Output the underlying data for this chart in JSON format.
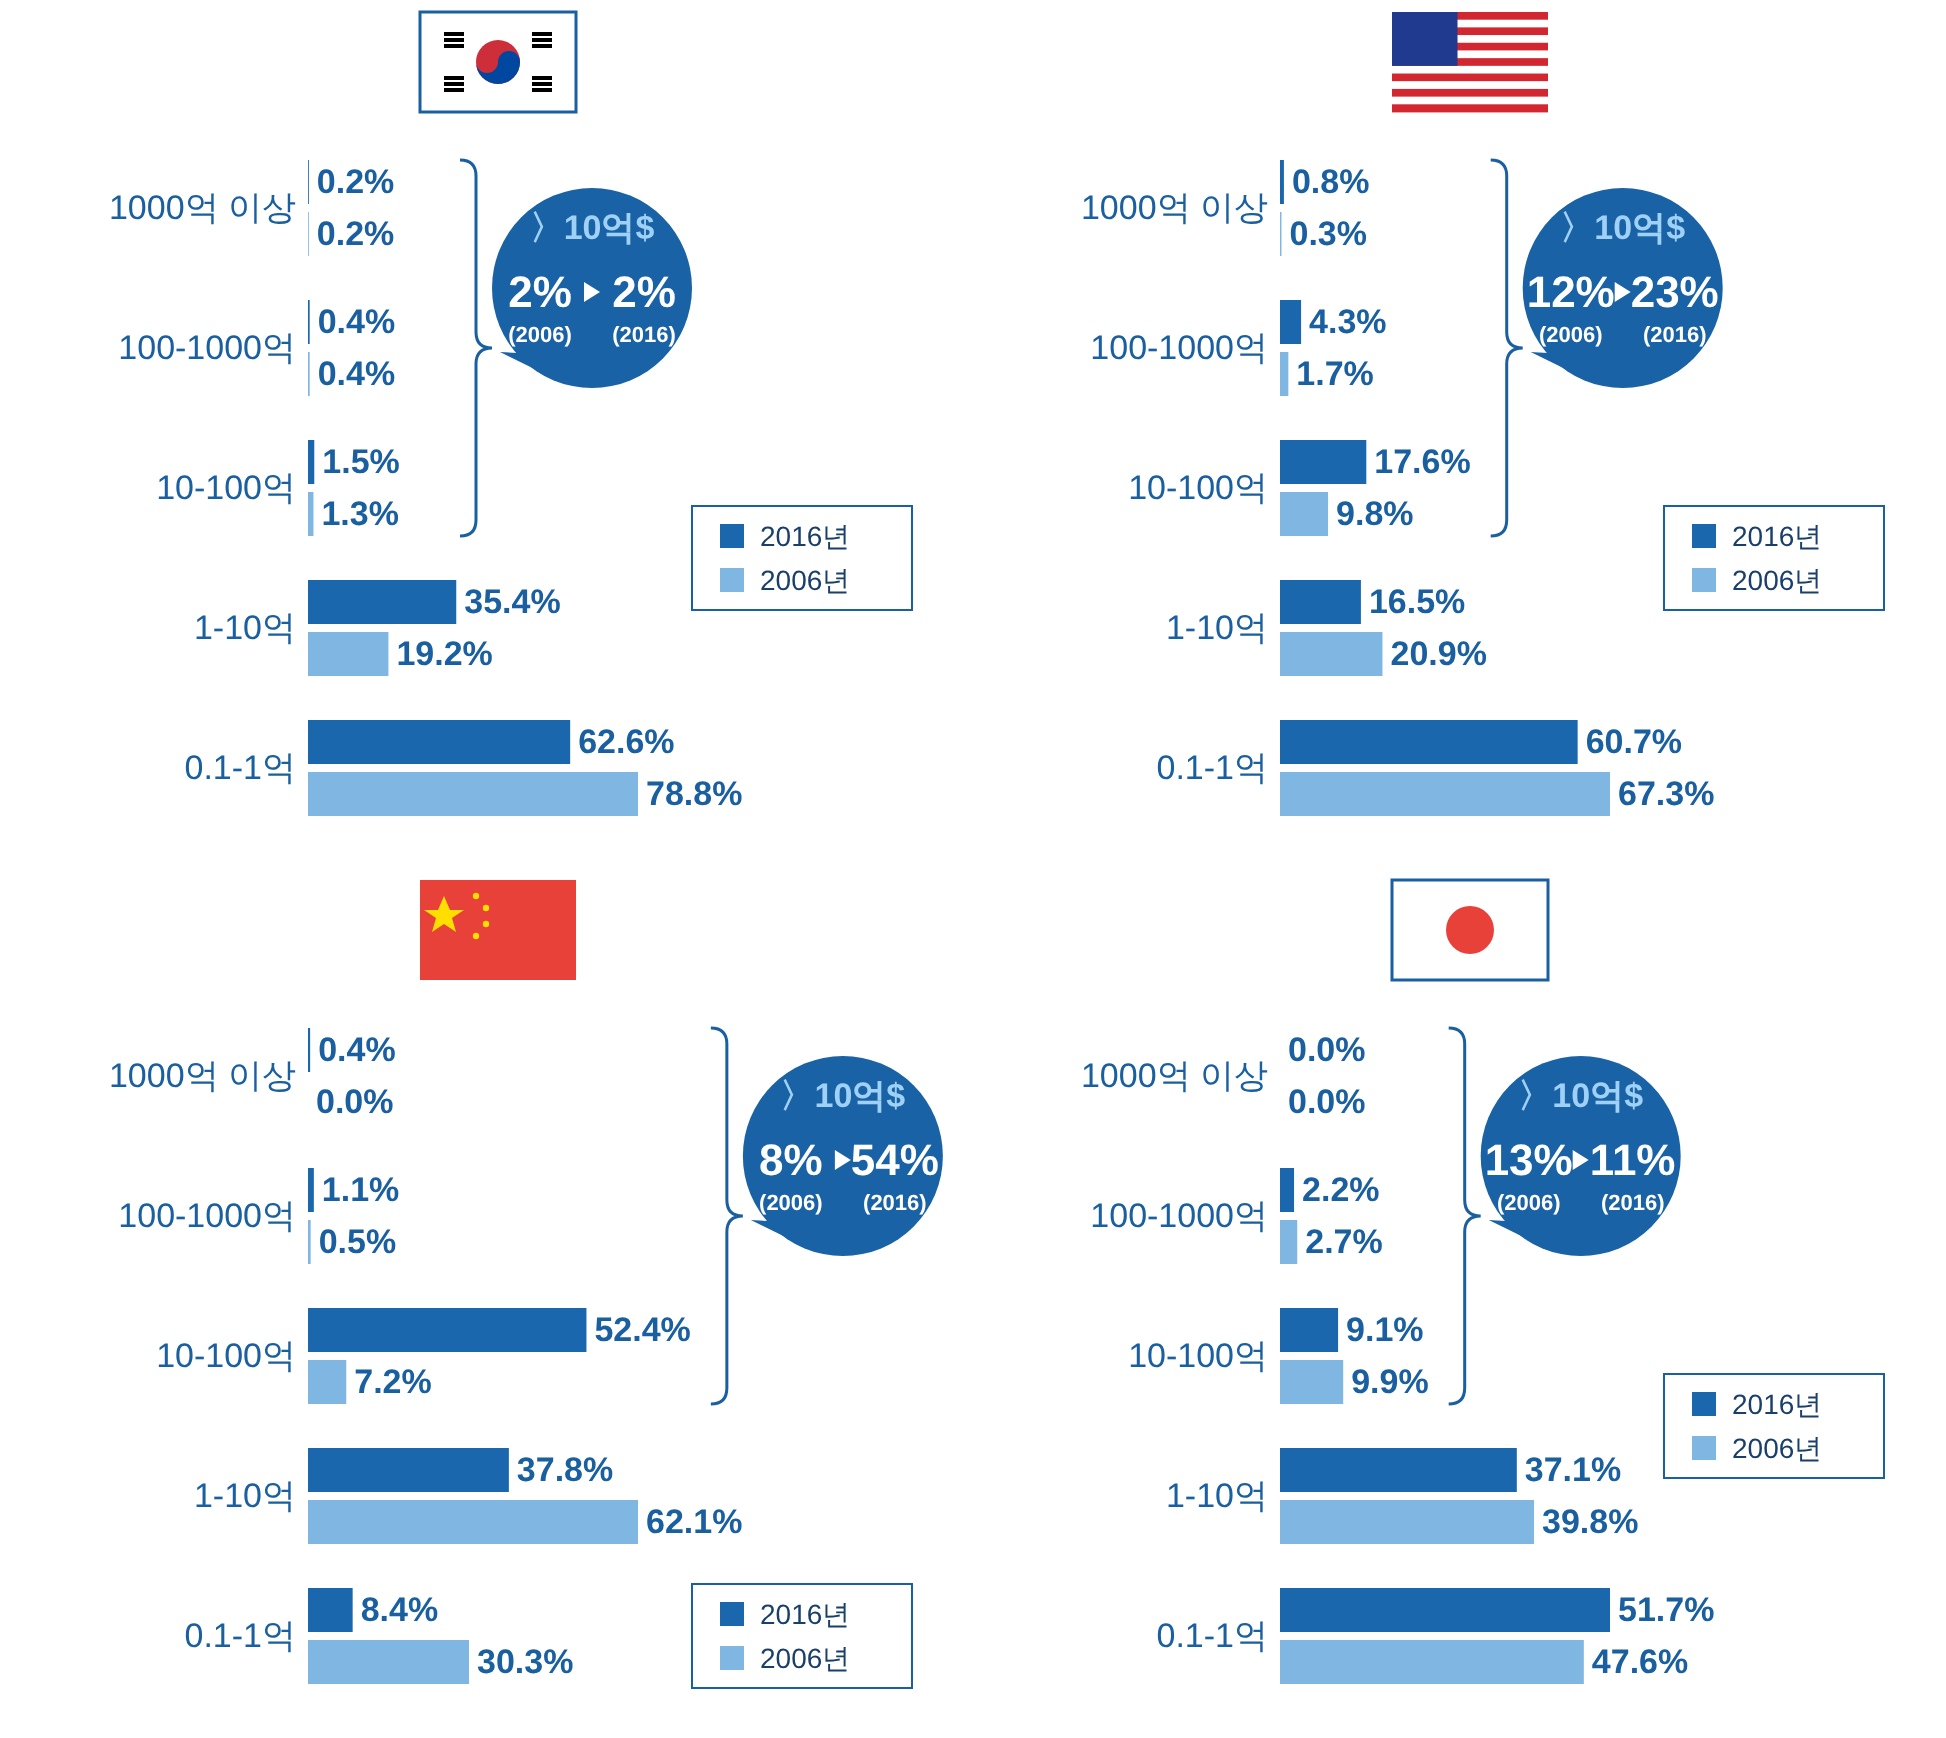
{
  "chart_data": [
    {
      "type": "bar",
      "orientation": "horizontal",
      "legend": "right",
      "categories": [
        "1000억 이상",
        "100-1000억",
        "10-100억",
        "1-10억",
        "0.1-1억"
      ],
      "series": [
        {
          "name": "2016년",
          "color": "#1a67ad",
          "values": [
            0.2,
            0.4,
            1.5,
            35.4,
            62.6
          ],
          "value_labels": [
            "0.2%",
            "0.4%",
            "1.5%",
            "35.4%",
            "62.6%"
          ]
        },
        {
          "name": "2006년",
          "color": "#80b6e2",
          "values": [
            0.2,
            0.4,
            1.3,
            19.2,
            78.8
          ],
          "value_labels": [
            "0.2%",
            "0.4%",
            "1.3%",
            "19.2%",
            "78.8%"
          ]
        }
      ],
      "annotations": [
        "〉10억$",
        "2%",
        "(2006)",
        "2%",
        "(2016)"
      ]
    },
    {
      "type": "bar",
      "orientation": "horizontal",
      "legend": "right",
      "categories": [
        "1000억 이상",
        "100-1000억",
        "10-100억",
        "1-10억",
        "0.1-1억"
      ],
      "series": [
        {
          "name": "2016년",
          "color": "#1a67ad",
          "values": [
            0.8,
            4.3,
            17.6,
            16.5,
            60.7
          ],
          "value_labels": [
            "0.8%",
            "4.3%",
            "17.6%",
            "16.5%",
            "60.7%"
          ]
        },
        {
          "name": "2006년",
          "color": "#80b6e2",
          "values": [
            0.3,
            1.7,
            9.8,
            20.9,
            67.3
          ],
          "value_labels": [
            "0.3%",
            "1.7%",
            "9.8%",
            "20.9%",
            "67.3%"
          ]
        }
      ],
      "annotations": [
        "〉10억$",
        "12%",
        "(2006)",
        "23%",
        "(2016)"
      ]
    },
    {
      "type": "bar",
      "orientation": "horizontal",
      "legend": "bottom right",
      "categories": [
        "1000억 이상",
        "100-1000억",
        "10-100억",
        "1-10억",
        "0.1-1억"
      ],
      "series": [
        {
          "name": "2016년",
          "color": "#1a67ad",
          "values": [
            0.4,
            1.1,
            52.4,
            37.8,
            8.4
          ],
          "value_labels": [
            "0.4%",
            "1.1%",
            "52.4%",
            "37.8%",
            "8.4%"
          ]
        },
        {
          "name": "2006년",
          "color": "#80b6e2",
          "values": [
            0.0,
            0.5,
            7.2,
            62.1,
            30.3
          ],
          "value_labels": [
            "0.0%",
            "0.5%",
            "7.2%",
            "62.1%",
            "30.3%"
          ]
        }
      ],
      "annotations": [
        "〉10억$",
        "8%",
        "(2006)",
        "54%",
        "(2016)"
      ]
    },
    {
      "type": "bar",
      "orientation": "horizontal",
      "legend": "right",
      "categories": [
        "1000억 이상",
        "100-1000억",
        "10-100억",
        "1-10억",
        "0.1-1억"
      ],
      "series": [
        {
          "name": "2016년",
          "color": "#1a67ad",
          "values": [
            0.0,
            2.2,
            9.1,
            37.1,
            51.7
          ],
          "value_labels": [
            "0.0%",
            "2.2%",
            "9.1%",
            "37.1%",
            "51.7%"
          ]
        },
        {
          "name": "2006년",
          "color": "#80b6e2",
          "values": [
            0.0,
            2.7,
            9.9,
            39.8,
            47.6
          ],
          "value_labels": [
            "0.0%",
            "2.7%",
            "9.9%",
            "39.8%",
            "47.6%"
          ]
        }
      ],
      "annotations": [
        "〉10억$",
        "13%",
        "(2006)",
        "11%",
        "(2016)"
      ]
    }
  ]
}
